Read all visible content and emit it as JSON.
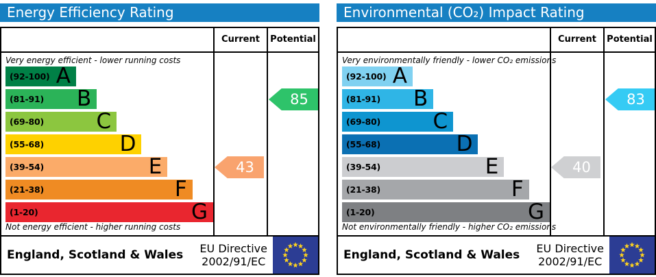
{
  "colors": {
    "header_bar": "#1680c2",
    "eu_flag_blue": "#2c3d94",
    "eu_flag_stars": "#fdd220",
    "border": "#000000"
  },
  "panels": [
    {
      "title": "Energy Efficiency Rating",
      "current_label": "Current",
      "potential_label": "Potential",
      "top_caption": "Very energy efficient - lower running costs",
      "bottom_caption": "Not energy efficient - higher running costs",
      "bands": [
        {
          "range": "(92-100)",
          "letter": "A",
          "color": "#008046",
          "width_pct": 34
        },
        {
          "range": "(81-91)",
          "letter": "B",
          "color": "#2bb358",
          "width_pct": 44
        },
        {
          "range": "(69-80)",
          "letter": "C",
          "color": "#8cc63f",
          "width_pct": 53.5
        },
        {
          "range": "(55-68)",
          "letter": "D",
          "color": "#fed100",
          "width_pct": 65.5
        },
        {
          "range": "(39-54)",
          "letter": "E",
          "color": "#fbab69",
          "width_pct": 78
        },
        {
          "range": "(21-38)",
          "letter": "F",
          "color": "#ef8b23",
          "width_pct": 90
        },
        {
          "range": "(1-20)",
          "letter": "G",
          "color": "#e9262f",
          "width_pct": 100
        }
      ],
      "current": {
        "value": "43",
        "color": "#f9a36e",
        "band_index": 4
      },
      "potential": {
        "value": "85",
        "color": "#2ec36a",
        "band_index": 1
      },
      "footer_region": "England, Scotland & Wales",
      "directive_line1": "EU Directive",
      "directive_line2": "2002/91/EC"
    },
    {
      "title": "Environmental (CO₂) Impact Rating",
      "current_label": "Current",
      "potential_label": "Potential",
      "top_caption": "Very environmentally friendly - lower CO₂ emissions",
      "bottom_caption": "Not environmentally friendly - higher CO₂ emissions",
      "bands": [
        {
          "range": "(92-100)",
          "letter": "A",
          "color": "#80d1f1",
          "width_pct": 34
        },
        {
          "range": "(81-91)",
          "letter": "B",
          "color": "#2fb5e6",
          "width_pct": 44
        },
        {
          "range": "(69-80)",
          "letter": "C",
          "color": "#0e95d0",
          "width_pct": 53.5
        },
        {
          "range": "(55-68)",
          "letter": "D",
          "color": "#0b70b3",
          "width_pct": 65.5
        },
        {
          "range": "(39-54)",
          "letter": "E",
          "color": "#cccdd0",
          "width_pct": 78
        },
        {
          "range": "(21-38)",
          "letter": "F",
          "color": "#a5a7aa",
          "width_pct": 90
        },
        {
          "range": "(1-20)",
          "letter": "G",
          "color": "#7e8083",
          "width_pct": 100
        }
      ],
      "current": {
        "value": "40",
        "color": "#cfd0d2",
        "band_index": 4
      },
      "potential": {
        "value": "83",
        "color": "#35cbf4",
        "band_index": 1
      },
      "footer_region": "England, Scotland & Wales",
      "directive_line1": "EU Directive",
      "directive_line2": "2002/91/EC"
    }
  ],
  "chart_data": [
    {
      "type": "bar",
      "title": "Energy Efficiency Rating",
      "categories": [
        "A (92-100)",
        "B (81-91)",
        "C (69-80)",
        "D (55-68)",
        "E (39-54)",
        "F (21-38)",
        "G (1-20)"
      ],
      "values": [
        34,
        44,
        53.5,
        65.5,
        78,
        90,
        100
      ],
      "values_note": "band bar lengths as percent of chart width",
      "band_colors": [
        "#008046",
        "#2bb358",
        "#8cc63f",
        "#fed100",
        "#fbab69",
        "#ef8b23",
        "#e9262f"
      ],
      "series": [
        {
          "name": "Current",
          "value": 43,
          "band": "E",
          "color": "#f9a36e"
        },
        {
          "name": "Potential",
          "value": 85,
          "band": "B",
          "color": "#2ec36a"
        }
      ],
      "xlabel": "",
      "ylabel": "",
      "xlim": [
        1,
        100
      ],
      "legend_position": "right-columns",
      "annotations": [
        "Very energy efficient - lower running costs",
        "Not energy efficient - higher running costs"
      ],
      "footer": "England, Scotland & Wales — EU Directive 2002/91/EC"
    },
    {
      "type": "bar",
      "title": "Environmental (CO₂) Impact Rating",
      "categories": [
        "A (92-100)",
        "B (81-91)",
        "C (69-80)",
        "D (55-68)",
        "E (39-54)",
        "F (21-38)",
        "G (1-20)"
      ],
      "values": [
        34,
        44,
        53.5,
        65.5,
        78,
        90,
        100
      ],
      "values_note": "band bar lengths as percent of chart width",
      "band_colors": [
        "#80d1f1",
        "#2fb5e6",
        "#0e95d0",
        "#0b70b3",
        "#cccdd0",
        "#a5a7aa",
        "#7e8083"
      ],
      "series": [
        {
          "name": "Current",
          "value": 40,
          "band": "E",
          "color": "#cfd0d2"
        },
        {
          "name": "Potential",
          "value": 83,
          "band": "B",
          "color": "#35cbf4"
        }
      ],
      "xlabel": "",
      "ylabel": "",
      "xlim": [
        1,
        100
      ],
      "legend_position": "right-columns",
      "annotations": [
        "Very environmentally friendly - lower CO₂ emissions",
        "Not environmentally friendly - higher CO₂ emissions"
      ],
      "footer": "England, Scotland & Wales — EU Directive 2002/91/EC"
    }
  ]
}
